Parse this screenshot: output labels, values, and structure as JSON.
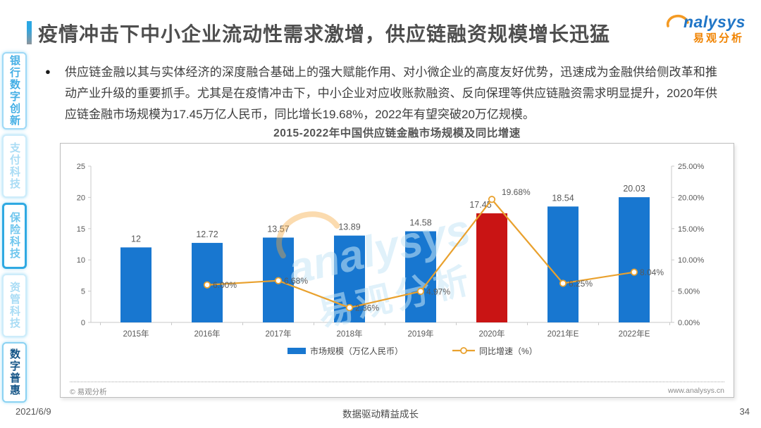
{
  "page": {
    "title": "疫情冲击下中小企业流动性需求激增，供应链融资规模增长迅猛",
    "date": "2021/6/9",
    "slogan": "数据驱动精益成长",
    "page_number": "34"
  },
  "logo": {
    "brand": "Analysys 易观分析",
    "text_en": "nalysys",
    "text_cn": "易观分析",
    "arc_color": "#F49A23",
    "en_color": "#2176C7",
    "cn_color": "#F08300"
  },
  "sidebar": {
    "items": [
      {
        "label": "银行数字创新",
        "state": "normal"
      },
      {
        "label": "支付科技",
        "state": "dim"
      },
      {
        "label": "保险科技",
        "state": "selected"
      },
      {
        "label": "资管科技",
        "state": "dim"
      },
      {
        "label": "数字普惠",
        "state": "dark"
      }
    ]
  },
  "summary": {
    "bullet": "●",
    "text": "供应链金融以其与实体经济的深度融合基础上的强大赋能作用、对小微企业的高度友好优势，迅速成为金融供给侧改革和推动产业升级的重要抓手。尤其是在疫情冲击下，中小企业对应收账款融资、反向保理等供应链融资需求明显提升，2020年供应链金融市场规模为17.45万亿人民币，同比增长19.68%，2022年有望突破20万亿规模。"
  },
  "chart_box": {
    "copyright": "© 易观分析",
    "website": "www.analysys.cn"
  },
  "watermark": {
    "text_en": "analysys",
    "text_cn": "易观分析",
    "color": "#C8E7F7",
    "arc_color": "#F5A83C"
  },
  "chart_data": {
    "type": "bar+line",
    "title": "2015-2022年中国供应链金融市场规模及同比增速",
    "categories": [
      "2015年",
      "2016年",
      "2017年",
      "2018年",
      "2019年",
      "2020年",
      "2021年E",
      "2022年E"
    ],
    "series": [
      {
        "name": "市场规模（万亿人民币）",
        "type": "bar",
        "axis": "left",
        "values": [
          12,
          12.72,
          13.57,
          13.89,
          14.58,
          17.45,
          18.54,
          20.03
        ],
        "labels": [
          "12",
          "12.72",
          "13.57",
          "13.89",
          "14.58",
          "17.45",
          "18.54",
          "20.03"
        ]
      },
      {
        "name": "同比增速（%）",
        "type": "line",
        "axis": "right",
        "values": [
          null,
          6.0,
          6.68,
          2.36,
          4.97,
          19.68,
          6.25,
          8.04
        ],
        "labels": [
          null,
          "6.00%",
          "6.68%",
          "2.36%",
          "4.97%",
          "19.68%",
          "6.25%",
          "8.04%"
        ]
      }
    ],
    "highlight_index": 5,
    "left_axis": {
      "min": 0,
      "max": 25,
      "ticks": [
        "0",
        "5",
        "10",
        "15",
        "20",
        "25"
      ]
    },
    "right_axis": {
      "min": 0,
      "max": 25,
      "ticks": [
        "0.00%",
        "5.00%",
        "10.00%",
        "15.00%",
        "20.00%",
        "25.00%"
      ]
    },
    "colors": {
      "bar": "#1877D0",
      "bar_highlight": "#C91414",
      "line": "#E9A12E",
      "axis": "#C9C9C9",
      "label": "#595959"
    },
    "legend": [
      {
        "label": "市场规模（万亿人民币）",
        "swatch": "bar"
      },
      {
        "label": "同比增速（%）",
        "swatch": "line"
      }
    ],
    "grid": false,
    "legend_position": "bottom"
  }
}
